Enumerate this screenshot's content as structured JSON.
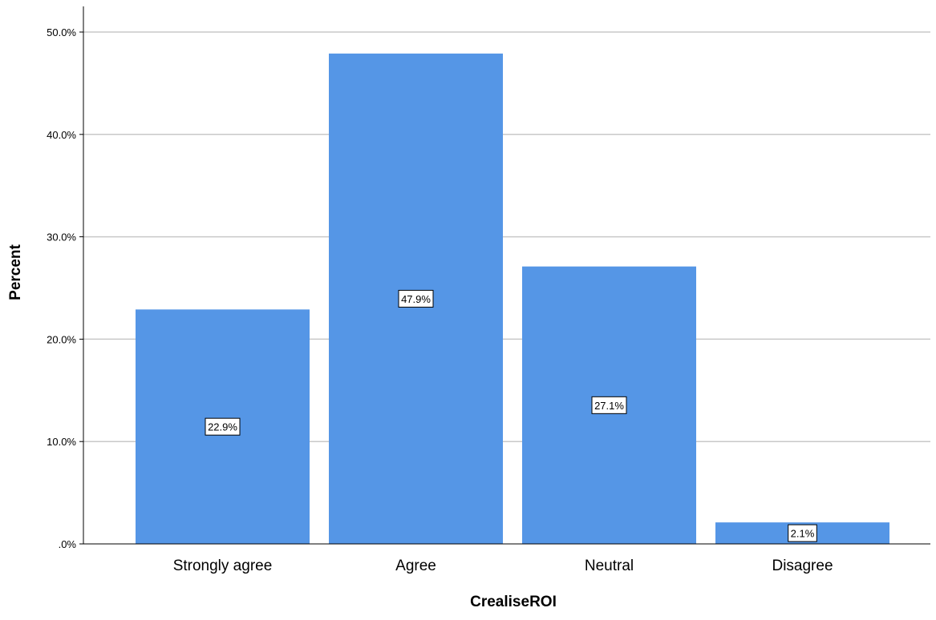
{
  "chart_data": {
    "type": "bar",
    "categories": [
      "Strongly agree",
      "Agree",
      "Neutral",
      "Disagree"
    ],
    "values": [
      22.9,
      47.9,
      27.1,
      2.1
    ],
    "data_labels": [
      "22.9%",
      "47.9%",
      "27.1%",
      "2.1%"
    ],
    "title": "",
    "xlabel": "CrealiseROI",
    "ylabel": "Percent",
    "ylim": [
      0,
      50
    ],
    "yticks": [
      0,
      10,
      20,
      30,
      40,
      50
    ],
    "ytick_labels": [
      ".0%",
      "10.0%",
      "20.0%",
      "30.0%",
      "40.0%",
      "50.0%"
    ],
    "grid": true,
    "legend": "none",
    "bar_color": "#5596e6",
    "grid_color": "#c8c8c8",
    "axis_color": "#000000"
  }
}
